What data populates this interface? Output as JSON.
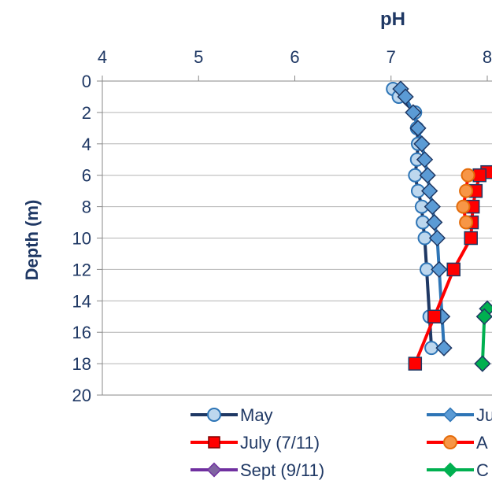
{
  "chart_data": {
    "type": "line",
    "title": "",
    "xlabel": "pH",
    "ylabel": "Depth (m)",
    "xlim": [
      4,
      8
    ],
    "ylim": [
      0,
      20
    ],
    "y_inverted": true,
    "x_axis_position": "top",
    "xticks": [
      "4",
      "5",
      "6",
      "7",
      "8"
    ],
    "yticks": [
      "0",
      "2",
      "4",
      "6",
      "8",
      "10",
      "12",
      "14",
      "16",
      "18",
      "20"
    ],
    "grid": "horizontal",
    "legend_position": "bottom",
    "series": [
      {
        "name": "May",
        "color": "#1f3864",
        "marker": "circle",
        "marker_fill": "#bdd7ee",
        "points": [
          [
            7.02,
            0.5
          ],
          [
            7.08,
            1
          ],
          [
            7.25,
            2
          ],
          [
            7.27,
            3
          ],
          [
            7.28,
            4
          ],
          [
            7.27,
            5
          ],
          [
            7.25,
            6
          ],
          [
            7.28,
            7
          ],
          [
            7.32,
            8
          ],
          [
            7.33,
            9
          ],
          [
            7.35,
            10
          ],
          [
            7.37,
            12
          ],
          [
            7.4,
            15
          ],
          [
            7.42,
            17
          ]
        ]
      },
      {
        "name": "Ju",
        "color": "#2e75b6",
        "marker": "diamond",
        "marker_fill": "#5b9bd5",
        "points": [
          [
            7.1,
            0.5
          ],
          [
            7.15,
            1
          ],
          [
            7.23,
            2
          ],
          [
            7.28,
            3
          ],
          [
            7.32,
            4
          ],
          [
            7.35,
            5
          ],
          [
            7.38,
            6
          ],
          [
            7.4,
            7
          ],
          [
            7.43,
            8
          ],
          [
            7.45,
            9
          ],
          [
            7.48,
            10
          ],
          [
            7.5,
            12
          ],
          [
            7.53,
            15
          ],
          [
            7.55,
            17
          ]
        ]
      },
      {
        "name": "July (7/11)",
        "color": "#ff0000",
        "marker": "square",
        "marker_fill": "#ff0000",
        "points": [
          [
            8.0,
            5.8
          ],
          [
            7.92,
            6
          ],
          [
            7.88,
            7
          ],
          [
            7.85,
            8
          ],
          [
            7.84,
            9
          ],
          [
            7.83,
            10
          ],
          [
            7.65,
            12
          ],
          [
            7.45,
            15
          ],
          [
            7.25,
            18
          ]
        ]
      },
      {
        "name": "A",
        "color": "#ff0000",
        "marker": "circle",
        "marker_fill": "#f79646",
        "points": [
          [
            7.8,
            6
          ],
          [
            7.78,
            7
          ],
          [
            7.75,
            8
          ],
          [
            7.78,
            9
          ]
        ]
      },
      {
        "name": "Sept (9/11)",
        "color": "#7030a0",
        "marker": "diamond",
        "marker_fill": "#8064a2",
        "points": []
      },
      {
        "name": "C",
        "color": "#00b050",
        "marker": "diamond",
        "marker_fill": "#00b050",
        "points": [
          [
            8.0,
            14.5
          ],
          [
            7.97,
            15
          ],
          [
            7.95,
            18
          ]
        ]
      }
    ]
  }
}
